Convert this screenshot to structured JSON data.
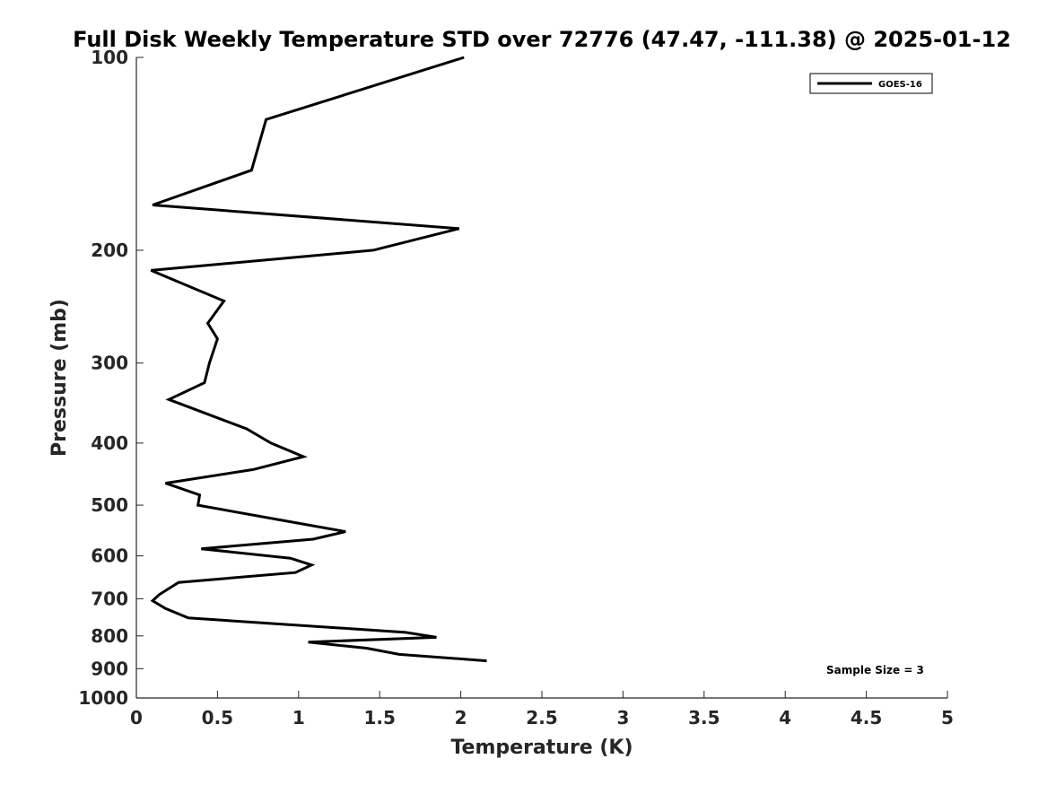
{
  "chart_data": {
    "type": "line",
    "title": "Full Disk Weekly Temperature STD over 72776 (47.47, -111.38) @ 2025-01-12",
    "xlabel": "Temperature (K)",
    "ylabel": "Pressure (mb)",
    "xlim": [
      0,
      5
    ],
    "ylim": [
      100,
      1000
    ],
    "y_scale": "log",
    "y_reversed": true,
    "x_ticks": [
      "0",
      "0.5",
      "1",
      "1.5",
      "2",
      "2.5",
      "3",
      "3.5",
      "4",
      "4.5",
      "5"
    ],
    "y_ticks": [
      "100",
      "200",
      "300",
      "400",
      "500",
      "600",
      "700",
      "800",
      "900",
      "1000"
    ],
    "grid": false,
    "legend": {
      "position": "top-right",
      "entries": [
        "GOES-16"
      ]
    },
    "annotation": "Sample Size = 3",
    "series": [
      {
        "name": "GOES-16",
        "color": "#000000",
        "points": [
          [
            2.02,
            100
          ],
          [
            0.8,
            125
          ],
          [
            0.71,
            150
          ],
          [
            0.1,
            170
          ],
          [
            1.99,
            185
          ],
          [
            1.46,
            200
          ],
          [
            0.09,
            215
          ],
          [
            0.54,
            240
          ],
          [
            0.44,
            260
          ],
          [
            0.5,
            275
          ],
          [
            0.45,
            300
          ],
          [
            0.42,
            322
          ],
          [
            0.2,
            342
          ],
          [
            0.68,
            380
          ],
          [
            0.83,
            400
          ],
          [
            1.03,
            420
          ],
          [
            0.72,
            440
          ],
          [
            0.18,
            462
          ],
          [
            0.39,
            482
          ],
          [
            0.38,
            500
          ],
          [
            0.9,
            528
          ],
          [
            1.29,
            550
          ],
          [
            1.09,
            565
          ],
          [
            0.4,
            585
          ],
          [
            0.95,
            605
          ],
          [
            1.08,
            620
          ],
          [
            0.98,
            637
          ],
          [
            0.26,
            660
          ],
          [
            0.14,
            690
          ],
          [
            0.1,
            705
          ],
          [
            0.18,
            725
          ],
          [
            0.32,
            750
          ],
          [
            1.66,
            790
          ],
          [
            1.85,
            804
          ],
          [
            1.06,
            818
          ],
          [
            1.42,
            836
          ],
          [
            1.62,
            855
          ],
          [
            2.16,
            875
          ]
        ]
      }
    ]
  }
}
